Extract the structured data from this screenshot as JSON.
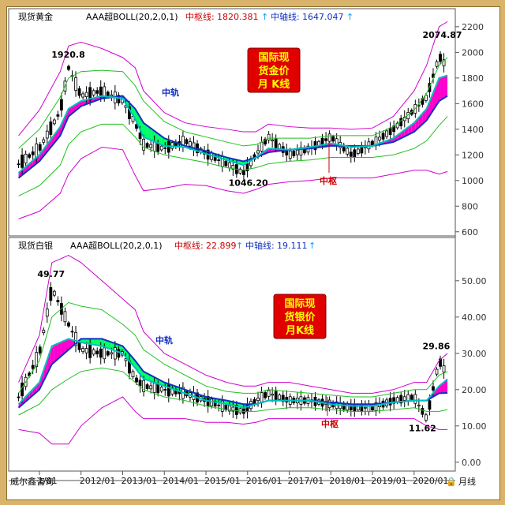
{
  "colors": {
    "upper": "#d000d0",
    "lower": "#d000d0",
    "band2": "#20c020",
    "mid": "#1030c0",
    "fast": "#00bfbf",
    "fill_above": "#ff00cc",
    "fill_below": "#00ff66",
    "candle": "#000000",
    "red_text": "#cc0000",
    "blue_text": "#1030c0",
    "box": "#e00000",
    "box_text": "#ffff00"
  },
  "footer": {
    "company": "威尔鑫咨询",
    "period_label": "月线"
  },
  "chart_data": [
    {
      "type": "line",
      "symbol": "现货黄金",
      "indicator": "AAA超BOLL(20,2,0,1)",
      "mid_label": "中枢线:",
      "mid_value": "1820.381",
      "axis_label": "中轴线:",
      "axis_value": "1647.047",
      "title_box": [
        "国际现",
        "货金价",
        "月 K线"
      ],
      "ann_mid_rail": "中轨",
      "ann_pivot": "中枢",
      "peak_labels": [
        {
          "x": 2011.67,
          "y": 1920.8,
          "text": "1920.8"
        },
        {
          "x": 2015.92,
          "y": 1046.2,
          "text": "1046.20"
        },
        {
          "x": 2020.58,
          "y": 2074.87,
          "text": "2074.87"
        }
      ],
      "y_ticks": [
        600,
        800,
        1000,
        1200,
        1400,
        1600,
        1800,
        2000,
        2200
      ],
      "ylim": [
        580,
        2230
      ],
      "x": [
        2010.5,
        2011.0,
        2011.5,
        2011.7,
        2012.0,
        2012.5,
        2013.0,
        2013.3,
        2013.5,
        2014.0,
        2014.5,
        2015.0,
        2015.5,
        2015.9,
        2016.2,
        2016.5,
        2017.0,
        2017.5,
        2018.0,
        2018.5,
        2019.0,
        2019.5,
        2020.0,
        2020.3,
        2020.6,
        2020.8
      ],
      "price": [
        1130,
        1250,
        1540,
        1880,
        1660,
        1700,
        1620,
        1450,
        1280,
        1250,
        1310,
        1210,
        1130,
        1060,
        1200,
        1340,
        1200,
        1250,
        1340,
        1200,
        1290,
        1400,
        1550,
        1650,
        1970,
        1880
      ],
      "mid": [
        1020,
        1150,
        1350,
        1500,
        1580,
        1640,
        1660,
        1560,
        1450,
        1330,
        1270,
        1230,
        1180,
        1150,
        1180,
        1220,
        1240,
        1250,
        1270,
        1270,
        1270,
        1300,
        1380,
        1470,
        1620,
        1660
      ],
      "fast": [
        1060,
        1200,
        1420,
        1560,
        1620,
        1660,
        1640,
        1480,
        1340,
        1270,
        1260,
        1210,
        1160,
        1120,
        1180,
        1250,
        1240,
        1260,
        1290,
        1260,
        1270,
        1330,
        1450,
        1560,
        1800,
        1820
      ],
      "upper": [
        1350,
        1550,
        1850,
        2050,
        2080,
        2030,
        1960,
        1880,
        1700,
        1530,
        1450,
        1420,
        1400,
        1380,
        1380,
        1440,
        1420,
        1410,
        1410,
        1400,
        1410,
        1500,
        1700,
        1900,
        2200,
        2240
      ],
      "band2": [
        880,
        960,
        1120,
        1280,
        1380,
        1440,
        1440,
        1340,
        1260,
        1200,
        1170,
        1140,
        1100,
        1080,
        1100,
        1130,
        1150,
        1160,
        1180,
        1180,
        1180,
        1200,
        1250,
        1310,
        1430,
        1500
      ],
      "band3": [
        1250,
        1400,
        1650,
        1800,
        1850,
        1860,
        1850,
        1740,
        1620,
        1460,
        1380,
        1340,
        1300,
        1270,
        1280,
        1330,
        1330,
        1330,
        1350,
        1350,
        1350,
        1420,
        1550,
        1680,
        1900,
        1960
      ],
      "lower": [
        700,
        760,
        900,
        1050,
        1170,
        1260,
        1240,
        1040,
        920,
        940,
        970,
        960,
        920,
        900,
        930,
        970,
        990,
        1000,
        1020,
        1020,
        1020,
        1050,
        1080,
        1080,
        1050,
        1070
      ]
    },
    {
      "type": "line",
      "symbol": "现货白银",
      "indicator": "AAA超BOLL(20,2,0,1)",
      "mid_label": "中枢线:",
      "mid_value": "22.899",
      "axis_label": "中轴线:",
      "axis_value": "19.111",
      "title_box": [
        "国际现",
        "货银价",
        "月K线"
      ],
      "ann_mid_rail": "中轨",
      "ann_pivot": "中枢",
      "peak_labels": [
        {
          "x": 2011.33,
          "y": 49.77,
          "text": "49.77"
        },
        {
          "x": 2020.25,
          "y": 11.62,
          "text": "11.62"
        },
        {
          "x": 2020.58,
          "y": 29.86,
          "text": "29.86"
        }
      ],
      "x_ticks": [
        "1/01",
        "2012/01",
        "2013/01",
        "2014/01",
        "2015/01",
        "2016/01",
        "2017/01",
        "2018/01",
        "2019/01",
        "2020/01"
      ],
      "x_tick_values": [
        2011.0,
        2012.0,
        2013.0,
        2014.0,
        2015.0,
        2016.0,
        2017.0,
        2018.0,
        2019.0,
        2020.0
      ],
      "y_ticks": [
        0.0,
        10.0,
        20.0,
        30.0,
        40.0,
        50.0
      ],
      "ylim": [
        -2,
        58
      ],
      "x": [
        2010.5,
        2011.0,
        2011.3,
        2011.7,
        2012.0,
        2012.5,
        2013.0,
        2013.3,
        2013.5,
        2014.0,
        2014.5,
        2015.0,
        2015.5,
        2015.9,
        2016.2,
        2016.5,
        2017.0,
        2017.5,
        2018.0,
        2018.5,
        2019.0,
        2019.5,
        2020.0,
        2020.3,
        2020.6,
        2020.8
      ],
      "price": [
        18,
        30,
        48,
        38,
        31,
        30,
        30,
        23,
        21,
        20,
        19,
        17,
        15,
        14,
        17,
        19,
        17,
        17,
        16,
        15,
        15,
        17,
        18,
        12,
        28,
        24
      ],
      "mid": [
        15,
        20,
        27,
        31,
        34,
        34,
        32,
        28,
        25,
        22,
        20,
        18,
        17,
        16,
        16,
        17,
        17,
        17,
        16.5,
        16,
        16,
        16.5,
        17,
        17,
        19,
        19.1
      ],
      "fast": [
        16,
        22,
        32,
        34,
        33,
        32,
        30,
        26,
        23,
        21,
        19,
        17,
        16,
        15,
        16,
        17,
        17,
        17,
        16,
        15.5,
        15.5,
        16.5,
        17,
        17,
        21,
        22.9
      ],
      "upper": [
        22,
        35,
        55,
        57,
        55,
        50,
        45,
        42,
        36,
        30,
        27,
        24,
        22,
        21,
        21,
        22,
        22,
        21,
        20,
        19,
        19,
        20,
        22,
        22,
        28,
        30
      ],
      "band2": [
        13,
        16,
        20,
        23,
        25,
        26,
        25,
        22,
        20,
        18,
        17,
        15.5,
        14.5,
        14,
        14,
        14.5,
        15,
        15,
        14.5,
        14,
        14,
        14.5,
        15,
        14,
        14,
        14.5
      ],
      "band3": [
        19,
        28,
        40,
        44,
        43,
        42,
        38,
        35,
        31,
        27,
        24,
        21,
        19.5,
        19,
        19,
        20,
        19.5,
        19,
        18.5,
        18,
        18,
        19,
        20,
        20,
        24,
        25
      ],
      "lower": [
        9,
        8,
        5,
        5,
        10,
        15,
        18,
        14,
        12,
        12,
        12,
        11,
        11,
        10.5,
        11,
        12,
        12,
        12,
        12,
        12,
        12,
        12,
        12,
        10,
        9,
        9
      ]
    }
  ]
}
